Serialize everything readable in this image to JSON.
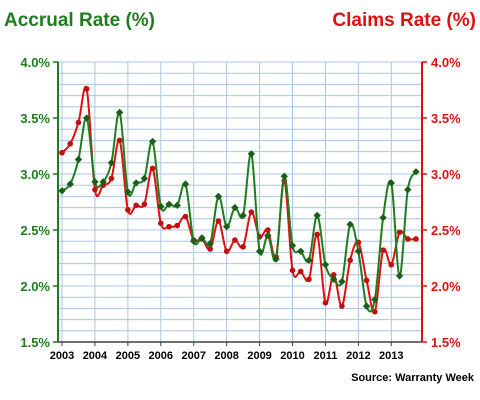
{
  "colors": {
    "accrual": "#1e7d1e",
    "accrual_marker": "#1a5e1a",
    "claims": "#e01010",
    "claims_marker": "#c01010",
    "grid": "#a9c4e3",
    "axis_left": "#1e7d1e",
    "axis_right": "#e01010"
  },
  "source_text": "Source: Warranty Week",
  "chart_data": {
    "type": "line",
    "title_left": "Accrual Rate (%)",
    "title_right": "Claims Rate (%)",
    "ylim": [
      1.5,
      4.0
    ],
    "y_ticks": [
      "1.5%",
      "2.0%",
      "2.5%",
      "3.0%",
      "3.5%",
      "4.0%"
    ],
    "y_tick_values": [
      1.5,
      2.0,
      2.5,
      3.0,
      3.5,
      4.0
    ],
    "x_ticks": [
      "2003",
      "2004",
      "2005",
      "2006",
      "2007",
      "2008",
      "2009",
      "2010",
      "2011",
      "2012",
      "2013"
    ],
    "grid": true,
    "series": [
      {
        "name": "Accrual Rate (%)",
        "axis": "left",
        "values": [
          2.85,
          2.91,
          3.13,
          3.5,
          2.93,
          2.93,
          3.1,
          3.55,
          2.84,
          2.92,
          2.96,
          3.29,
          2.71,
          2.73,
          2.72,
          2.91,
          2.4,
          2.43,
          2.38,
          2.8,
          2.53,
          2.7,
          2.63,
          3.18,
          2.31,
          2.45,
          2.24,
          2.98,
          2.36,
          2.31,
          2.23,
          2.63,
          2.19,
          2.06,
          2.04,
          2.55,
          2.31,
          1.82,
          1.88,
          2.61,
          2.92,
          2.09,
          2.86,
          3.02
        ]
      },
      {
        "name": "Claims Rate (%)",
        "axis": "right",
        "values": [
          3.19,
          3.27,
          3.46,
          3.76,
          2.86,
          2.9,
          2.96,
          3.3,
          2.68,
          2.72,
          2.73,
          3.05,
          2.56,
          2.53,
          2.54,
          2.62,
          2.41,
          2.42,
          2.33,
          2.58,
          2.31,
          2.41,
          2.35,
          2.66,
          2.44,
          2.5,
          2.26,
          2.94,
          2.14,
          2.13,
          2.06,
          2.46,
          1.85,
          2.1,
          1.82,
          2.23,
          2.39,
          2.05,
          1.77,
          2.32,
          2.19,
          2.48,
          2.42,
          2.42
        ]
      }
    ]
  }
}
